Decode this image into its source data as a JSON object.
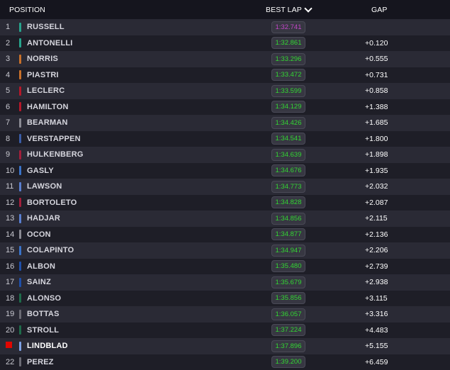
{
  "header": {
    "position_label": "POSITION",
    "best_lap_label": "BEST LAP",
    "gap_label": "GAP"
  },
  "rows": [
    {
      "pos": "1",
      "driver": "RUSSELL",
      "team_color": "#27a38c",
      "best_lap": "1:32.741",
      "gap": "",
      "fastest": true
    },
    {
      "pos": "2",
      "driver": "ANTONELLI",
      "team_color": "#27a38c",
      "best_lap": "1:32.861",
      "gap": "+0.120"
    },
    {
      "pos": "3",
      "driver": "NORRIS",
      "team_color": "#c8702a",
      "best_lap": "1:33.296",
      "gap": "+0.555"
    },
    {
      "pos": "4",
      "driver": "PIASTRI",
      "team_color": "#c8702a",
      "best_lap": "1:33.472",
      "gap": "+0.731"
    },
    {
      "pos": "5",
      "driver": "LECLERC",
      "team_color": "#b5182a",
      "best_lap": "1:33.599",
      "gap": "+0.858"
    },
    {
      "pos": "6",
      "driver": "HAMILTON",
      "team_color": "#b5182a",
      "best_lap": "1:34.129",
      "gap": "+1.388"
    },
    {
      "pos": "7",
      "driver": "BEARMAN",
      "team_color": "#8a8a93",
      "best_lap": "1:34.426",
      "gap": "+1.685"
    },
    {
      "pos": "8",
      "driver": "VERSTAPPEN",
      "team_color": "#3a5ca6",
      "best_lap": "1:34.541",
      "gap": "+1.800"
    },
    {
      "pos": "9",
      "driver": "HULKENBERG",
      "team_color": "#a11f3b",
      "best_lap": "1:34.639",
      "gap": "+1.898"
    },
    {
      "pos": "10",
      "driver": "GASLY",
      "team_color": "#3a73c8",
      "best_lap": "1:34.676",
      "gap": "+1.935"
    },
    {
      "pos": "11",
      "driver": "LAWSON",
      "team_color": "#5a7fd0",
      "best_lap": "1:34.773",
      "gap": "+2.032"
    },
    {
      "pos": "12",
      "driver": "BORTOLETO",
      "team_color": "#a11f3b",
      "best_lap": "1:34.828",
      "gap": "+2.087"
    },
    {
      "pos": "13",
      "driver": "HADJAR",
      "team_color": "#5a7fd0",
      "best_lap": "1:34.856",
      "gap": "+2.115"
    },
    {
      "pos": "14",
      "driver": "OCON",
      "team_color": "#8a8a93",
      "best_lap": "1:34.877",
      "gap": "+2.136"
    },
    {
      "pos": "15",
      "driver": "COLAPINTO",
      "team_color": "#3a73c8",
      "best_lap": "1:34.947",
      "gap": "+2.206"
    },
    {
      "pos": "16",
      "driver": "ALBON",
      "team_color": "#1f4fa8",
      "best_lap": "1:35.480",
      "gap": "+2.739"
    },
    {
      "pos": "17",
      "driver": "SAINZ",
      "team_color": "#1f4fa8",
      "best_lap": "1:35.679",
      "gap": "+2.938"
    },
    {
      "pos": "18",
      "driver": "ALONSO",
      "team_color": "#1e6b4a",
      "best_lap": "1:35.856",
      "gap": "+3.115"
    },
    {
      "pos": "19",
      "driver": "BOTTAS",
      "team_color": "#6b6b74",
      "best_lap": "1:36.057",
      "gap": "+3.316"
    },
    {
      "pos": "20",
      "driver": "STROLL",
      "team_color": "#1e6b4a",
      "best_lap": "1:37.224",
      "gap": "+4.483"
    },
    {
      "pos": "",
      "driver": "LINDBLAD",
      "team_color": "#7fa3e6",
      "best_lap": "1:37.896",
      "gap": "+5.155",
      "highlight": true,
      "flag": true
    },
    {
      "pos": "22",
      "driver": "PEREZ",
      "team_color": "#6b6b74",
      "best_lap": "1:39.200",
      "gap": "+6.459"
    }
  ],
  "colors": {
    "background": "#15151e",
    "fastest_lap": "#c346c8",
    "personal_best": "#33d633",
    "flag_red": "#e10600"
  }
}
